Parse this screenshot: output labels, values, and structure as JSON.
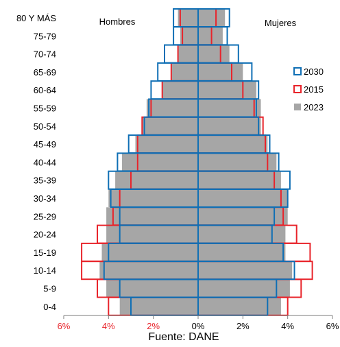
{
  "chart_data": {
    "type": "bar",
    "subtype": "population-pyramid",
    "title": "",
    "left_label": "Hombres",
    "right_label": "Mujeres",
    "source": "Fuente: DANE",
    "categories": [
      "80 Y MÁS",
      "75-79",
      "70-74",
      "65-69",
      "60-64",
      "55-59",
      "50-54",
      "45-49",
      "40-44",
      "35-39",
      "30-34",
      "25-29",
      "20-24",
      "15-19",
      "10-14",
      "5-9",
      "0-4"
    ],
    "x_ticks": [
      "6%",
      "4%",
      "2%",
      "0%",
      "2%",
      "4%",
      "6%"
    ],
    "x_tick_values": [
      -6,
      -4,
      -2,
      0,
      2,
      4,
      6
    ],
    "xlim": [
      -6,
      6
    ],
    "tick_colors": {
      "left": "#e8242b",
      "right": "#000000"
    },
    "series": [
      {
        "name": "2023",
        "style": "filled",
        "color": "#a6a6a6",
        "hombres": [
          0.9,
          0.8,
          0.9,
          1.2,
          1.6,
          2.3,
          2.5,
          2.8,
          3.4,
          3.7,
          4.0,
          4.1,
          4.1,
          4.3,
          4.4,
          4.1,
          3.5
        ],
        "mujeres": [
          1.2,
          1.1,
          1.4,
          2.0,
          2.6,
          2.8,
          2.8,
          3.1,
          3.5,
          3.7,
          4.0,
          4.0,
          3.9,
          3.9,
          4.2,
          4.1,
          3.7
        ]
      },
      {
        "name": "2015",
        "style": "outline",
        "color": "#e8242b",
        "hombres": [
          0.8,
          0.7,
          0.9,
          1.2,
          1.6,
          2.1,
          2.5,
          2.7,
          2.7,
          3.0,
          3.5,
          3.8,
          4.5,
          5.2,
          5.2,
          4.5,
          4.0
        ],
        "mujeres": [
          0.8,
          0.6,
          1.0,
          1.5,
          2.0,
          2.5,
          2.9,
          3.0,
          3.1,
          3.4,
          3.7,
          3.8,
          4.4,
          5.0,
          5.1,
          4.6,
          4.0
        ]
      },
      {
        "name": "2030",
        "style": "outline",
        "color": "#0f6fb5",
        "hombres": [
          1.1,
          1.1,
          1.5,
          1.8,
          2.1,
          2.2,
          2.4,
          3.1,
          3.6,
          4.0,
          3.9,
          3.5,
          3.5,
          4.0,
          4.2,
          3.5,
          3.0
        ],
        "mujeres": [
          1.4,
          1.3,
          1.8,
          2.4,
          2.7,
          2.6,
          2.7,
          3.2,
          3.6,
          4.1,
          4.0,
          3.4,
          3.3,
          3.8,
          4.3,
          3.5,
          3.1
        ]
      }
    ],
    "legend": [
      "2030",
      "2015",
      "2023"
    ],
    "legend_position": "right",
    "grid": false
  }
}
